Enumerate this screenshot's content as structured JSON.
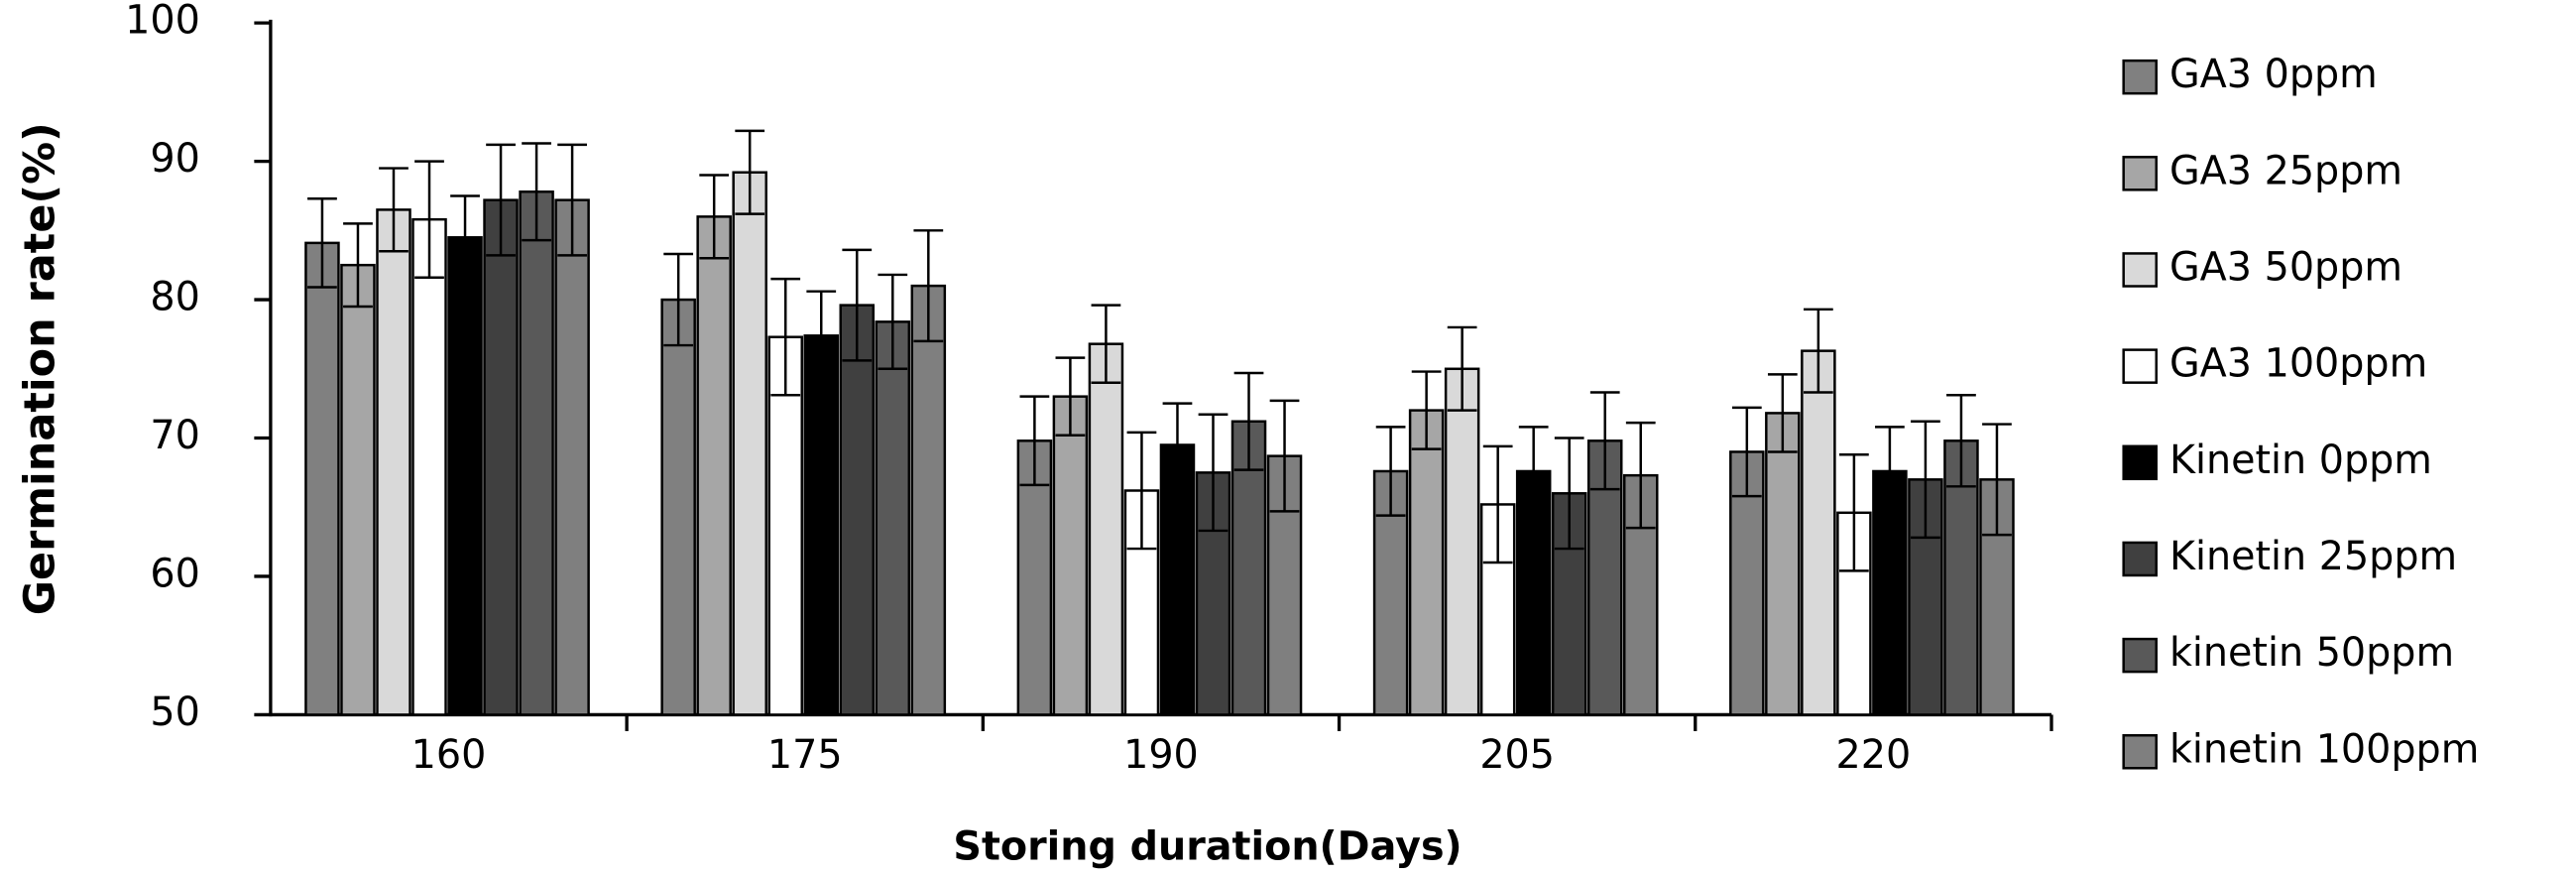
{
  "chart_data": {
    "type": "bar",
    "y_label": "Germination rate(%)",
    "x_label": "Storing duration(Days)",
    "categories": [
      "160",
      "175",
      "190",
      "205",
      "220"
    ],
    "ylim": [
      50,
      100
    ],
    "yticks": [
      50,
      60,
      70,
      80,
      90,
      100
    ],
    "grid": false,
    "legend": "right",
    "series": [
      {
        "name": "GA3 0ppm",
        "color": "#808080",
        "values": [
          84.1,
          80,
          69.8,
          67.6,
          69
        ],
        "errors": [
          3.2,
          3.3,
          3.2,
          3.2,
          3.2
        ]
      },
      {
        "name": "GA3 25ppm",
        "color": "#a6a6a6",
        "values": [
          82.5,
          86,
          73,
          72,
          71.8
        ],
        "errors": [
          3,
          3,
          2.8,
          2.8,
          2.8
        ]
      },
      {
        "name": "GA3 50ppm",
        "color": "#d9d9d9",
        "values": [
          86.5,
          89.2,
          76.8,
          75,
          76.3
        ],
        "errors": [
          3,
          3,
          2.8,
          3,
          3
        ]
      },
      {
        "name": "GA3 100ppm",
        "color": "#ffffff",
        "values": [
          85.8,
          77.3,
          66.2,
          65.2,
          64.6
        ],
        "errors": [
          4.2,
          4.2,
          4.2,
          4.2,
          4.2
        ]
      },
      {
        "name": "Kinetin 0ppm",
        "color": "#000000",
        "values": [
          84.5,
          77.4,
          69.5,
          67.6,
          67.6
        ],
        "errors": [
          3,
          3.2,
          3,
          3.2,
          3.2
        ]
      },
      {
        "name": "Kinetin 25ppm",
        "color": "#404040",
        "values": [
          87.2,
          79.6,
          67.5,
          66,
          67
        ],
        "errors": [
          4,
          4,
          4.2,
          4,
          4.2
        ]
      },
      {
        "name": "kinetin 50ppm",
        "color": "#595959",
        "values": [
          87.8,
          78.4,
          71.2,
          69.8,
          69.8
        ],
        "errors": [
          3.5,
          3.4,
          3.5,
          3.5,
          3.3
        ]
      },
      {
        "name": "kinetin 100ppm",
        "color": "#7f7f7f",
        "values": [
          87.2,
          81,
          68.7,
          67.3,
          67
        ],
        "errors": [
          4,
          4,
          4,
          3.8,
          4
        ]
      }
    ]
  }
}
